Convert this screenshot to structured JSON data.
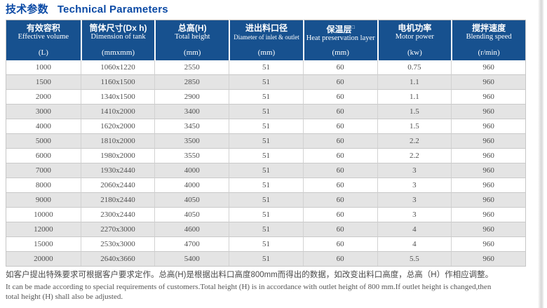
{
  "title": {
    "cn": "技术参数",
    "en": "Technical Parameters"
  },
  "colors": {
    "title_text": "#0b4aa5",
    "header_background": "#17518f",
    "header_text": "#ffffff",
    "row_stripe": "#e4e4e4",
    "body_text": "#4f4f4f",
    "grid_line": "#c9c9c9"
  },
  "table": {
    "columns": [
      {
        "cn": "有效容积",
        "en": "Effective volume",
        "unit": "(L)"
      },
      {
        "cn": "筒体尺寸(Dx h)",
        "en": "Dimension of tank",
        "unit": "(mmxmm)"
      },
      {
        "cn": "总高(H)",
        "en": "Total height",
        "unit": "(mm)"
      },
      {
        "cn": "进出料口径",
        "en": "Diameter of inlet & outlet",
        "unit": "(mm)"
      },
      {
        "cn": "保温层",
        "cn_suffix": "□",
        "en": "Heat preservation layer",
        "unit": "(mm)"
      },
      {
        "cn": "电机功率",
        "en": "Motor power",
        "unit": "(kw)"
      },
      {
        "cn": "搅拌速度",
        "en": "Blending speed",
        "unit": "(r/min)"
      }
    ],
    "rows": [
      [
        "1000",
        "1060x1220",
        "2550",
        "51",
        "60",
        "0.75",
        "960"
      ],
      [
        "1500",
        "1160x1500",
        "2850",
        "51",
        "60",
        "1.1",
        "960"
      ],
      [
        "2000",
        "1340x1500",
        "2900",
        "51",
        "60",
        "1.1",
        "960"
      ],
      [
        "3000",
        "1410x2000",
        "3400",
        "51",
        "60",
        "1.5",
        "960"
      ],
      [
        "4000",
        "1620x2000",
        "3450",
        "51",
        "60",
        "1.5",
        "960"
      ],
      [
        "5000",
        "1810x2000",
        "3500",
        "51",
        "60",
        "2.2",
        "960"
      ],
      [
        "6000",
        "1980x2000",
        "3550",
        "51",
        "60",
        "2.2",
        "960"
      ],
      [
        "7000",
        "1930x2440",
        "4000",
        "51",
        "60",
        "3",
        "960"
      ],
      [
        "8000",
        "2060x2440",
        "4000",
        "51",
        "60",
        "3",
        "960"
      ],
      [
        "9000",
        "2180x2440",
        "4050",
        "51",
        "60",
        "3",
        "960"
      ],
      [
        "10000",
        "2300x2440",
        "4050",
        "51",
        "60",
        "3",
        "960"
      ],
      [
        "12000",
        "2270x3000",
        "4600",
        "51",
        "60",
        "4",
        "960"
      ],
      [
        "15000",
        "2530x3000",
        "4700",
        "51",
        "60",
        "4",
        "960"
      ],
      [
        "20000",
        "2640x3660",
        "5400",
        "51",
        "60",
        "5.5",
        "960"
      ]
    ]
  },
  "footnote": {
    "cn": "如客户提出特殊要求可根据客户要求定作。总高(H)是根据出料口高度800mm而得出的数据，如改变出料口高度，总高（H）作相应调整。",
    "en_line1": "It can be made according to special requirements of customers.Total height (H) is in accordance with outlet height of 800 mm.If outlet height is changed,then",
    "en_line2": "total height (H) shall also be adjusted."
  }
}
